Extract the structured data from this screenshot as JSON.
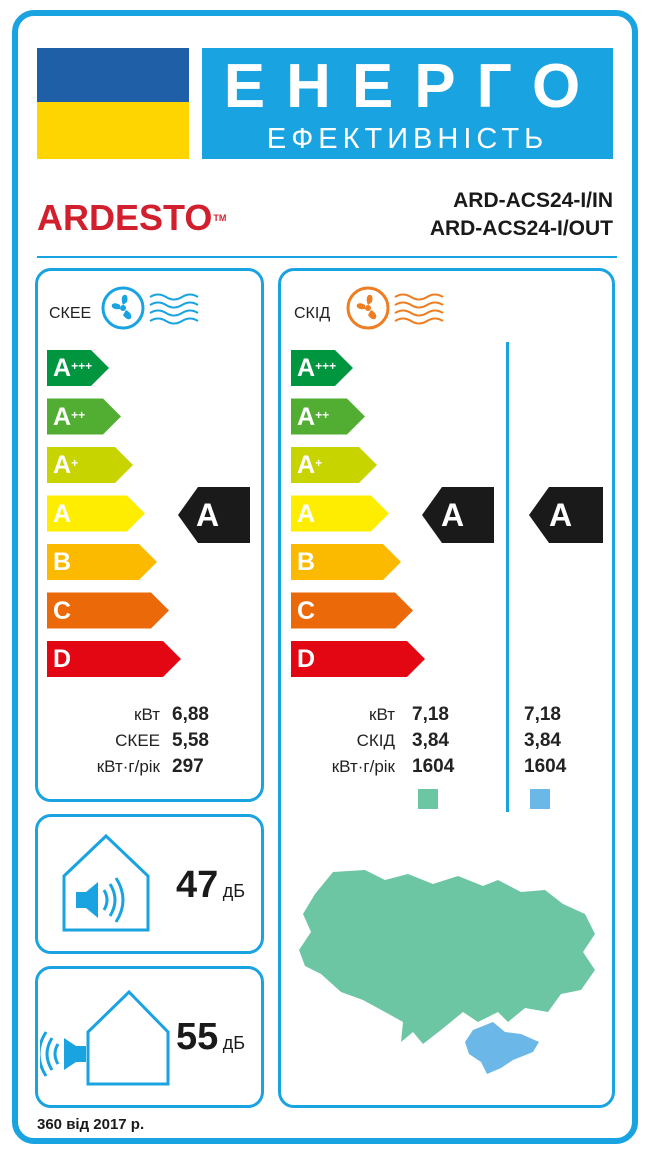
{
  "header": {
    "title_main": "ЕНЕРГО",
    "title_sub": "ЕФЕКТИВНІСТЬ"
  },
  "brand": {
    "name": "ARDESTO",
    "tm": "TM"
  },
  "models": {
    "indoor": "ARD-ACS24-I/IN",
    "outdoor": "ARD-ACS24-I/OUT"
  },
  "scale": [
    {
      "label": "A",
      "sup": "+++",
      "color": "#009640"
    },
    {
      "label": "A",
      "sup": "++",
      "color": "#52ae32"
    },
    {
      "label": "A",
      "sup": "+",
      "color": "#c8d400"
    },
    {
      "label": "A",
      "sup": "",
      "color": "#ffed00"
    },
    {
      "label": "B",
      "sup": "",
      "color": "#fbba00"
    },
    {
      "label": "C",
      "sup": "",
      "color": "#eb6909"
    },
    {
      "label": "D",
      "sup": "",
      "color": "#e30613"
    }
  ],
  "cooling": {
    "mode_label": "СКЕЕ",
    "icon_color": "#1aa3e1",
    "rating": "A",
    "rows": [
      {
        "label": "кВт",
        "value": "6,88"
      },
      {
        "label": "СКЕЕ",
        "value": "5,58"
      },
      {
        "label": "кВт·г/рік",
        "value": "297"
      }
    ]
  },
  "heating": {
    "mode_label": "СКІД",
    "icon_color": "#ef7d22",
    "rating_zone1": "A",
    "rating_zone2": "A",
    "rows": [
      {
        "label": "кВт",
        "value_zone1": "7,18",
        "value_zone2": "7,18"
      },
      {
        "label": "СКІД",
        "value_zone1": "3,84",
        "value_zone2": "3,84"
      },
      {
        "label": "кВт·г/рік",
        "value_zone1": "1604",
        "value_zone2": "1604"
      }
    ],
    "zone1_color": "#6cc5a3",
    "zone2_color": "#6ab7e8"
  },
  "noise": {
    "indoor_value": "47",
    "outdoor_value": "55",
    "unit": "дБ"
  },
  "footer": "360 від 2017 р."
}
